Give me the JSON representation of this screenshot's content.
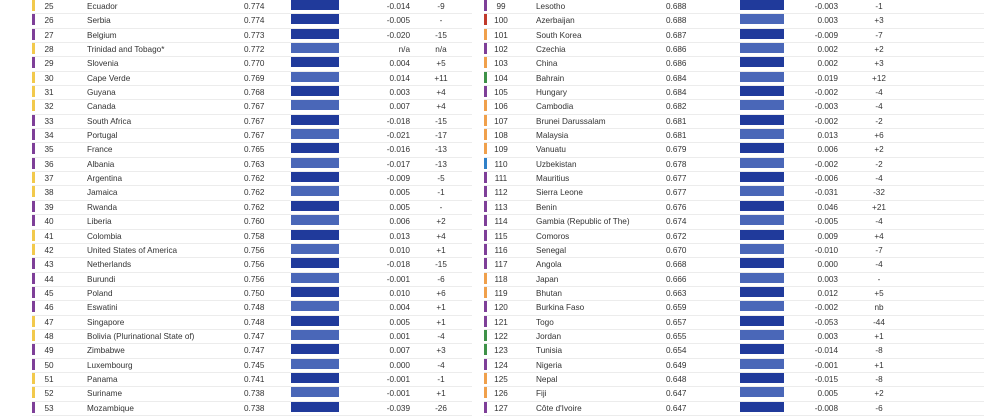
{
  "colors": {
    "bar_dark": "#203a9b",
    "bar_light": "#4a67b8",
    "stripe_yellow": "#f2c94c",
    "stripe_purple": "#7e3f98",
    "stripe_orange": "#f0a04b",
    "stripe_blue": "#2f80c8",
    "stripe_green": "#3e9148",
    "stripe_red": "#c0392b"
  },
  "left_rows": [
    {
      "rank": "25",
      "country": "Ecuador",
      "score": "0.774",
      "change": "-0.014",
      "diff": "-9",
      "stripe": "stripe_yellow",
      "bar": "bar_dark"
    },
    {
      "rank": "26",
      "country": "Serbia",
      "score": "0.774",
      "change": "-0.005",
      "diff": "-",
      "stripe": "stripe_purple",
      "bar": "bar_dark"
    },
    {
      "rank": "27",
      "country": "Belgium",
      "score": "0.773",
      "change": "-0.020",
      "diff": "-15",
      "stripe": "stripe_purple",
      "bar": "bar_dark"
    },
    {
      "rank": "28",
      "country": "Trinidad and Tobago*",
      "score": "0.772",
      "change": "n/a",
      "diff": "n/a",
      "stripe": "stripe_yellow",
      "bar": "bar_light"
    },
    {
      "rank": "29",
      "country": "Slovenia",
      "score": "0.770",
      "change": "0.004",
      "diff": "+5",
      "stripe": "stripe_purple",
      "bar": "bar_dark"
    },
    {
      "rank": "30",
      "country": "Cape Verde",
      "score": "0.769",
      "change": "0.014",
      "diff": "+11",
      "stripe": "stripe_yellow",
      "bar": "bar_light"
    },
    {
      "rank": "31",
      "country": "Guyana",
      "score": "0.768",
      "change": "0.003",
      "diff": "+4",
      "stripe": "stripe_yellow",
      "bar": "bar_dark"
    },
    {
      "rank": "32",
      "country": "Canada",
      "score": "0.767",
      "change": "0.007",
      "diff": "+4",
      "stripe": "stripe_yellow",
      "bar": "bar_light"
    },
    {
      "rank": "33",
      "country": "South Africa",
      "score": "0.767",
      "change": "-0.018",
      "diff": "-15",
      "stripe": "stripe_purple",
      "bar": "bar_dark"
    },
    {
      "rank": "34",
      "country": "Portugal",
      "score": "0.767",
      "change": "-0.021",
      "diff": "-17",
      "stripe": "stripe_purple",
      "bar": "bar_light"
    },
    {
      "rank": "35",
      "country": "France",
      "score": "0.765",
      "change": "-0.016",
      "diff": "-13",
      "stripe": "stripe_purple",
      "bar": "bar_dark"
    },
    {
      "rank": "36",
      "country": "Albania",
      "score": "0.763",
      "change": "-0.017",
      "diff": "-13",
      "stripe": "stripe_purple",
      "bar": "bar_light"
    },
    {
      "rank": "37",
      "country": "Argentina",
      "score": "0.762",
      "change": "-0.009",
      "diff": "-5",
      "stripe": "stripe_yellow",
      "bar": "bar_dark"
    },
    {
      "rank": "38",
      "country": "Jamaica",
      "score": "0.762",
      "change": "0.005",
      "diff": "-1",
      "stripe": "stripe_yellow",
      "bar": "bar_light"
    },
    {
      "rank": "39",
      "country": "Rwanda",
      "score": "0.762",
      "change": "0.005",
      "diff": "-",
      "stripe": "stripe_purple",
      "bar": "bar_dark"
    },
    {
      "rank": "40",
      "country": "Liberia",
      "score": "0.760",
      "change": "0.006",
      "diff": "+2",
      "stripe": "stripe_purple",
      "bar": "bar_light"
    },
    {
      "rank": "41",
      "country": "Colombia",
      "score": "0.758",
      "change": "0.013",
      "diff": "+4",
      "stripe": "stripe_yellow",
      "bar": "bar_dark"
    },
    {
      "rank": "42",
      "country": "United States of America",
      "score": "0.756",
      "change": "0.010",
      "diff": "+1",
      "stripe": "stripe_yellow",
      "bar": "bar_light"
    },
    {
      "rank": "43",
      "country": "Netherlands",
      "score": "0.756",
      "change": "-0.018",
      "diff": "-15",
      "stripe": "stripe_purple",
      "bar": "bar_dark"
    },
    {
      "rank": "44",
      "country": "Burundi",
      "score": "0.756",
      "change": "-0.001",
      "diff": "-6",
      "stripe": "stripe_purple",
      "bar": "bar_light"
    },
    {
      "rank": "45",
      "country": "Poland",
      "score": "0.750",
      "change": "0.010",
      "diff": "+6",
      "stripe": "stripe_purple",
      "bar": "bar_dark"
    },
    {
      "rank": "46",
      "country": "Eswatini",
      "score": "0.748",
      "change": "0.004",
      "diff": "+1",
      "stripe": "stripe_purple",
      "bar": "bar_light"
    },
    {
      "rank": "47",
      "country": "Singapore",
      "score": "0.748",
      "change": "0.005",
      "diff": "+1",
      "stripe": "stripe_yellow",
      "bar": "bar_dark"
    },
    {
      "rank": "48",
      "country": "Bolivia (Plurinational State of)",
      "score": "0.747",
      "change": "0.001",
      "diff": "-4",
      "stripe": "stripe_yellow",
      "bar": "bar_light"
    },
    {
      "rank": "49",
      "country": "Zimbabwe",
      "score": "0.747",
      "change": "0.007",
      "diff": "+3",
      "stripe": "stripe_purple",
      "bar": "bar_dark"
    },
    {
      "rank": "50",
      "country": "Luxembourg",
      "score": "0.745",
      "change": "0.000",
      "diff": "-4",
      "stripe": "stripe_purple",
      "bar": "bar_light"
    },
    {
      "rank": "51",
      "country": "Panama",
      "score": "0.741",
      "change": "-0.001",
      "diff": "-1",
      "stripe": "stripe_yellow",
      "bar": "bar_dark"
    },
    {
      "rank": "52",
      "country": "Suriname",
      "score": "0.738",
      "change": "-0.001",
      "diff": "+1",
      "stripe": "stripe_yellow",
      "bar": "bar_light"
    },
    {
      "rank": "53",
      "country": "Mozambique",
      "score": "0.738",
      "change": "-0.039",
      "diff": "-26",
      "stripe": "stripe_purple",
      "bar": "bar_dark"
    }
  ],
  "right_rows": [
    {
      "rank": "99",
      "country": "Lesotho",
      "score": "0.688",
      "change": "-0.003",
      "diff": "-1",
      "stripe": "stripe_purple",
      "bar": "bar_dark"
    },
    {
      "rank": "100",
      "country": "Azerbaijan",
      "score": "0.688",
      "change": "0.003",
      "diff": "+3",
      "stripe": "stripe_red",
      "bar": "bar_light"
    },
    {
      "rank": "101",
      "country": "South Korea",
      "score": "0.687",
      "change": "-0.009",
      "diff": "-7",
      "stripe": "stripe_orange",
      "bar": "bar_dark"
    },
    {
      "rank": "102",
      "country": "Czechia",
      "score": "0.686",
      "change": "0.002",
      "diff": "+2",
      "stripe": "stripe_purple",
      "bar": "bar_light"
    },
    {
      "rank": "103",
      "country": "China",
      "score": "0.686",
      "change": "0.002",
      "diff": "+3",
      "stripe": "stripe_orange",
      "bar": "bar_dark"
    },
    {
      "rank": "104",
      "country": "Bahrain",
      "score": "0.684",
      "change": "0.019",
      "diff": "+12",
      "stripe": "stripe_green",
      "bar": "bar_light"
    },
    {
      "rank": "105",
      "country": "Hungary",
      "score": "0.684",
      "change": "-0.002",
      "diff": "-4",
      "stripe": "stripe_purple",
      "bar": "bar_dark"
    },
    {
      "rank": "106",
      "country": "Cambodia",
      "score": "0.682",
      "change": "-0.003",
      "diff": "-4",
      "stripe": "stripe_orange",
      "bar": "bar_light"
    },
    {
      "rank": "107",
      "country": "Brunei Darussalam",
      "score": "0.681",
      "change": "-0.002",
      "diff": "-2",
      "stripe": "stripe_orange",
      "bar": "bar_dark"
    },
    {
      "rank": "108",
      "country": "Malaysia",
      "score": "0.681",
      "change": "0.013",
      "diff": "+6",
      "stripe": "stripe_orange",
      "bar": "bar_light"
    },
    {
      "rank": "109",
      "country": "Vanuatu",
      "score": "0.679",
      "change": "0.006",
      "diff": "+2",
      "stripe": "stripe_orange",
      "bar": "bar_dark"
    },
    {
      "rank": "110",
      "country": "Uzbekistan",
      "score": "0.678",
      "change": "-0.002",
      "diff": "-2",
      "stripe": "stripe_blue",
      "bar": "bar_light"
    },
    {
      "rank": "111",
      "country": "Mauritius",
      "score": "0.677",
      "change": "-0.006",
      "diff": "-4",
      "stripe": "stripe_purple",
      "bar": "bar_dark"
    },
    {
      "rank": "112",
      "country": "Sierra Leone",
      "score": "0.677",
      "change": "-0.031",
      "diff": "-32",
      "stripe": "stripe_purple",
      "bar": "bar_light"
    },
    {
      "rank": "113",
      "country": "Benin",
      "score": "0.676",
      "change": "0.046",
      "diff": "+21",
      "stripe": "stripe_purple",
      "bar": "bar_dark"
    },
    {
      "rank": "114",
      "country": "Gambia (Republic of The)",
      "score": "0.674",
      "change": "-0.005",
      "diff": "-4",
      "stripe": "stripe_purple",
      "bar": "bar_light"
    },
    {
      "rank": "115",
      "country": "Comoros",
      "score": "0.672",
      "change": "0.009",
      "diff": "+4",
      "stripe": "stripe_purple",
      "bar": "bar_dark"
    },
    {
      "rank": "116",
      "country": "Senegal",
      "score": "0.670",
      "change": "-0.010",
      "diff": "-7",
      "stripe": "stripe_purple",
      "bar": "bar_light"
    },
    {
      "rank": "117",
      "country": "Angola",
      "score": "0.668",
      "change": "0.000",
      "diff": "-4",
      "stripe": "stripe_purple",
      "bar": "bar_dark"
    },
    {
      "rank": "118",
      "country": "Japan",
      "score": "0.666",
      "change": "0.003",
      "diff": "-",
      "stripe": "stripe_orange",
      "bar": "bar_light"
    },
    {
      "rank": "119",
      "country": "Bhutan",
      "score": "0.663",
      "change": "0.012",
      "diff": "+5",
      "stripe": "stripe_orange",
      "bar": "bar_dark"
    },
    {
      "rank": "120",
      "country": "Burkina Faso",
      "score": "0.659",
      "change": "-0.002",
      "diff": "nb",
      "stripe": "stripe_purple",
      "bar": "bar_light"
    },
    {
      "rank": "121",
      "country": "Togo",
      "score": "0.657",
      "change": "-0.053",
      "diff": "-44",
      "stripe": "stripe_purple",
      "bar": "bar_dark"
    },
    {
      "rank": "122",
      "country": "Jordan",
      "score": "0.655",
      "change": "0.003",
      "diff": "+1",
      "stripe": "stripe_green",
      "bar": "bar_light"
    },
    {
      "rank": "123",
      "country": "Tunisia",
      "score": "0.654",
      "change": "-0.014",
      "diff": "-8",
      "stripe": "stripe_green",
      "bar": "bar_dark"
    },
    {
      "rank": "124",
      "country": "Nigeria",
      "score": "0.649",
      "change": "-0.001",
      "diff": "+1",
      "stripe": "stripe_purple",
      "bar": "bar_light"
    },
    {
      "rank": "125",
      "country": "Nepal",
      "score": "0.648",
      "change": "-0.015",
      "diff": "-8",
      "stripe": "stripe_orange",
      "bar": "bar_dark"
    },
    {
      "rank": "126",
      "country": "Fiji",
      "score": "0.647",
      "change": "0.005",
      "diff": "+2",
      "stripe": "stripe_orange",
      "bar": "bar_light"
    },
    {
      "rank": "127",
      "country": "Côte d'Ivoire",
      "score": "0.647",
      "change": "-0.008",
      "diff": "-6",
      "stripe": "stripe_purple",
      "bar": "bar_dark"
    }
  ]
}
